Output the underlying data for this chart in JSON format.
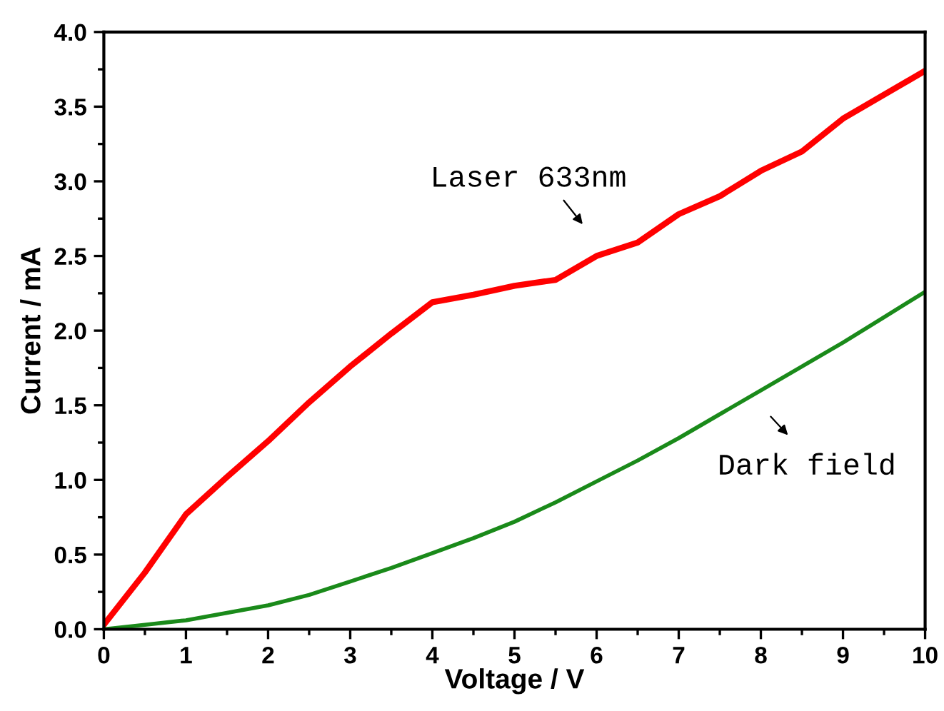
{
  "chart_data": {
    "type": "line",
    "xlabel": "Voltage / V",
    "ylabel": "Current / mA",
    "xlim": [
      0,
      10
    ],
    "ylim": [
      0,
      4.0
    ],
    "xticks": [
      0,
      1,
      2,
      3,
      4,
      5,
      6,
      7,
      8,
      9,
      10
    ],
    "yticks": [
      {
        "value": 0,
        "label": "0.0"
      },
      {
        "value": 0.5,
        "label": "0.5"
      },
      {
        "value": 1,
        "label": "1.0"
      },
      {
        "value": 1.5,
        "label": "1.5"
      },
      {
        "value": 2,
        "label": "2.0"
      },
      {
        "value": 2.5,
        "label": "2.5"
      },
      {
        "value": 3,
        "label": "3.0"
      },
      {
        "value": 3.5,
        "label": "3.5"
      },
      {
        "value": 4,
        "label": "4.0"
      }
    ],
    "grid": false,
    "legend": false,
    "marker": "none",
    "line_style": "solid",
    "x": [
      0,
      0.5,
      1,
      1.5,
      2,
      2.5,
      3,
      3.5,
      4,
      4.5,
      5,
      5.5,
      6,
      6.5,
      7,
      7.5,
      8,
      8.5,
      9,
      9.5,
      10
    ],
    "series": [
      {
        "color": "#ff0000",
        "values": [
          0.03,
          0.38,
          0.77,
          1.02,
          1.26,
          1.52,
          1.76,
          1.98,
          2.19,
          2.24,
          2.3,
          2.34,
          2.5,
          2.59,
          2.78,
          2.9,
          3.07,
          3.2,
          3.42,
          3.58,
          3.74
        ]
      },
      {
        "color": "#1a8a1a",
        "values": [
          0.0,
          0.03,
          0.06,
          0.11,
          0.16,
          0.23,
          0.32,
          0.41,
          0.51,
          0.61,
          0.72,
          0.85,
          0.99,
          1.13,
          1.28,
          1.44,
          1.6,
          1.76,
          1.92,
          2.09,
          2.26
        ]
      }
    ],
    "annotations": [
      "Laser 633nm",
      "Dark field"
    ]
  }
}
